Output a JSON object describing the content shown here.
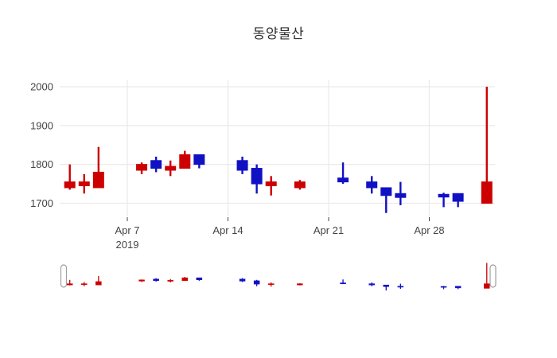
{
  "title": "동양물산",
  "colors": {
    "increasing": "#cc0000",
    "decreasing": "#1111c4",
    "grid": "#ebebeb",
    "axis_text": "#444444",
    "title_text": "#2f2f2f",
    "slider_handle_border": "#a0a0a0",
    "slider_handle_fill": "#ffffff",
    "background": "#ffffff"
  },
  "chart_data": {
    "type": "candlestick",
    "title": "동양물산",
    "xlabel": "",
    "ylabel": "",
    "grid": true,
    "legend": false,
    "rangeslider": true,
    "y_ticks": [
      1700,
      1800,
      1900,
      2000
    ],
    "ylim": [
      1665,
      2017
    ],
    "x_ticks": [
      {
        "date": "2019-04-07",
        "label": "Apr 7",
        "sublabel": "2019"
      },
      {
        "date": "2019-04-14",
        "label": "Apr 14",
        "sublabel": ""
      },
      {
        "date": "2019-04-21",
        "label": "Apr 21",
        "sublabel": ""
      },
      {
        "date": "2019-04-28",
        "label": "Apr 28",
        "sublabel": ""
      }
    ],
    "candles": [
      {
        "date": "2019-04-03",
        "open": 1740,
        "high": 1800,
        "low": 1735,
        "close": 1755
      },
      {
        "date": "2019-04-04",
        "open": 1745,
        "high": 1775,
        "low": 1725,
        "close": 1755
      },
      {
        "date": "2019-04-05",
        "open": 1740,
        "high": 1845,
        "low": 1740,
        "close": 1780
      },
      {
        "date": "2019-04-08",
        "open": 1785,
        "high": 1805,
        "low": 1775,
        "close": 1800
      },
      {
        "date": "2019-04-09",
        "open": 1810,
        "high": 1820,
        "low": 1780,
        "close": 1790
      },
      {
        "date": "2019-04-10",
        "open": 1785,
        "high": 1810,
        "low": 1770,
        "close": 1795
      },
      {
        "date": "2019-04-11",
        "open": 1790,
        "high": 1835,
        "low": 1790,
        "close": 1825
      },
      {
        "date": "2019-04-12",
        "open": 1825,
        "high": 1825,
        "low": 1790,
        "close": 1800
      },
      {
        "date": "2019-04-15",
        "open": 1810,
        "high": 1820,
        "low": 1775,
        "close": 1785
      },
      {
        "date": "2019-04-16",
        "open": 1790,
        "high": 1800,
        "low": 1725,
        "close": 1750
      },
      {
        "date": "2019-04-17",
        "open": 1745,
        "high": 1770,
        "low": 1720,
        "close": 1755
      },
      {
        "date": "2019-04-19",
        "open": 1740,
        "high": 1760,
        "low": 1735,
        "close": 1755
      },
      {
        "date": "2019-04-22",
        "open": 1765,
        "high": 1805,
        "low": 1750,
        "close": 1755
      },
      {
        "date": "2019-04-24",
        "open": 1755,
        "high": 1770,
        "low": 1725,
        "close": 1740
      },
      {
        "date": "2019-04-25",
        "open": 1740,
        "high": 1740,
        "low": 1675,
        "close": 1720
      },
      {
        "date": "2019-04-26",
        "open": 1725,
        "high": 1755,
        "low": 1695,
        "close": 1715
      },
      {
        "date": "2019-04-29",
        "open": 1723,
        "high": 1727,
        "low": 1690,
        "close": 1716
      },
      {
        "date": "2019-04-30",
        "open": 1725,
        "high": 1725,
        "low": 1690,
        "close": 1705
      },
      {
        "date": "2019-05-02",
        "open": 1700,
        "high": 2000,
        "low": 1700,
        "close": 1755
      }
    ]
  }
}
